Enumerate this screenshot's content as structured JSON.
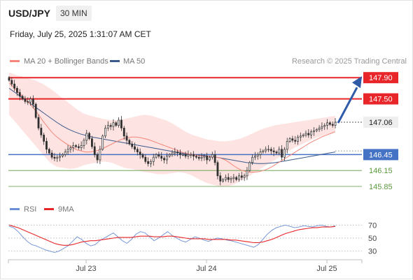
{
  "header": {
    "pair": "USD/JPY",
    "timeframe": "30 MIN",
    "datetime": "Friday, July 25, 2025 1:31:07 AM CET"
  },
  "legend": {
    "ma20": "MA 20 + Bollinger Bands",
    "ma50": "MA 50",
    "source": "Research © 2025 Trading Central",
    "rsi": "RSI",
    "ma9": "9MA"
  },
  "colors": {
    "resistance": "#e8262a",
    "pivot": "#4472c4",
    "support": "#5a9a3c",
    "ma20": "#f4867c",
    "ma50": "#3b5a8c",
    "bollinger_fill": "#fde3e1",
    "candle_up": "#2f2f2f",
    "candle_down": "#5a5a5a",
    "projection": "#2e5aa8",
    "rsi": "#6b8fd6",
    "rsi_ma": "#e8262a"
  },
  "chart_data": [
    {
      "type": "candlestick",
      "title": "USD/JPY 30 MIN",
      "ylim": [
        145.6,
        148.1
      ],
      "x_ticks": [
        "Jul 23",
        "Jul 24",
        "Jul 25"
      ],
      "levels": [
        {
          "value": 147.9,
          "label": "147.90",
          "kind": "resistance"
        },
        {
          "value": 147.5,
          "label": "147.50",
          "kind": "resistance"
        },
        {
          "value": 147.06,
          "label": "147.06",
          "kind": "last"
        },
        {
          "value": 146.45,
          "label": "146.45",
          "kind": "pivot"
        },
        {
          "value": 146.15,
          "label": "146.15",
          "kind": "support"
        },
        {
          "value": 145.85,
          "label": "145.85",
          "kind": "support"
        }
      ],
      "close": [
        147.85,
        147.78,
        147.7,
        147.62,
        147.55,
        147.5,
        147.45,
        147.44,
        147.5,
        147.4,
        147.15,
        146.95,
        146.82,
        146.7,
        146.55,
        146.48,
        146.4,
        146.38,
        146.4,
        146.42,
        146.45,
        146.5,
        146.55,
        146.58,
        146.62,
        146.6,
        146.58,
        146.62,
        146.72,
        146.85,
        146.75,
        146.6,
        146.45,
        146.35,
        146.55,
        146.8,
        146.95,
        147.0,
        146.98,
        147.05,
        147.0,
        147.1,
        146.95,
        146.8,
        146.72,
        146.65,
        146.6,
        146.55,
        146.5,
        146.45,
        146.4,
        146.32,
        146.28,
        146.32,
        146.4,
        146.45,
        146.42,
        146.38,
        146.35,
        146.42,
        146.45,
        146.48,
        146.5,
        146.48,
        146.45,
        146.45,
        146.42,
        146.45,
        146.45,
        146.42,
        146.4,
        146.38,
        146.4,
        146.42,
        146.35,
        146.4,
        146.45,
        146.3,
        146.05,
        145.95,
        145.98,
        146.02,
        145.98,
        146.0,
        146.02,
        145.98,
        146.05,
        146.02,
        146.05,
        146.15,
        146.3,
        146.4,
        146.42,
        146.45,
        146.5,
        146.52,
        146.55,
        146.55,
        146.52,
        146.5,
        146.48,
        146.55,
        146.4,
        146.55,
        146.7,
        146.75,
        146.72,
        146.7,
        146.78,
        146.8,
        146.82,
        146.85,
        146.82,
        146.88,
        146.9,
        146.92,
        146.95,
        146.98,
        147.0,
        147.05,
        147.02,
        147.0,
        147.06
      ],
      "ma20": [
        147.8,
        147.72,
        147.64,
        147.56,
        147.48,
        147.4,
        147.3,
        147.2,
        147.08,
        146.98,
        146.88,
        146.8,
        146.74,
        146.68,
        146.63,
        146.58,
        146.54,
        146.52,
        146.5,
        146.5,
        146.51,
        146.53,
        146.56,
        146.6,
        146.64,
        146.68,
        146.72,
        146.75,
        146.77,
        146.78,
        146.78,
        146.77,
        146.75,
        146.73,
        146.7,
        146.67,
        146.64,
        146.61,
        146.58,
        146.55,
        146.52,
        146.49,
        146.47,
        146.45,
        146.44,
        146.43,
        146.42,
        146.42,
        146.41,
        146.4,
        146.38,
        146.35,
        146.3,
        146.24,
        146.19,
        146.15,
        146.13,
        146.12,
        146.12,
        146.13,
        146.15,
        146.18,
        146.22,
        146.27,
        146.32,
        146.37,
        146.42,
        146.47,
        146.52,
        146.57,
        146.62,
        146.67,
        146.71,
        146.75,
        146.79,
        146.82,
        146.85,
        146.88
      ],
      "ma50": [
        147.7,
        147.62,
        147.54,
        147.46,
        147.38,
        147.3,
        147.22,
        147.14,
        147.06,
        146.99,
        146.93,
        146.88,
        146.84,
        146.81,
        146.78,
        146.76,
        146.74,
        146.72,
        146.7,
        146.68,
        146.66,
        146.64,
        146.62,
        146.6,
        146.58,
        146.56,
        146.54,
        146.52,
        146.5,
        146.48,
        146.46,
        146.45,
        146.44,
        146.43,
        146.42,
        146.4,
        146.38,
        146.36,
        146.34,
        146.32,
        146.3,
        146.29,
        146.28,
        146.28,
        146.29,
        146.3,
        146.32,
        146.34,
        146.36,
        146.38,
        146.4,
        146.42,
        146.44,
        146.46,
        146.48,
        146.5
      ],
      "bollinger_upper": [
        148.0,
        147.95,
        147.92,
        147.88,
        147.84,
        147.78,
        147.7,
        147.6,
        147.5,
        147.4,
        147.3,
        147.22,
        147.18,
        147.15,
        147.12,
        147.1,
        147.1,
        147.12,
        147.15,
        147.18,
        147.2,
        147.18,
        147.14,
        147.1,
        147.04,
        146.96,
        146.88,
        146.82,
        146.78,
        146.74,
        146.72,
        146.7,
        146.7,
        146.72,
        146.75,
        146.8,
        146.86,
        146.92,
        146.96,
        147.0,
        147.02,
        147.04,
        147.06,
        147.08,
        147.1,
        147.12,
        147.14,
        147.16,
        147.18
      ],
      "bollinger_lower": [
        147.2,
        147.05,
        146.9,
        146.75,
        146.6,
        146.45,
        146.3,
        146.22,
        146.2,
        146.18,
        146.2,
        146.25,
        146.28,
        146.3,
        146.32,
        146.3,
        146.25,
        146.2,
        146.18,
        146.15,
        146.12,
        146.1,
        146.08,
        146.08,
        146.1,
        146.12,
        146.1,
        146.05,
        145.98,
        145.92,
        145.88,
        145.85,
        145.85,
        145.88,
        145.95,
        146.02,
        146.1,
        146.18,
        146.26,
        146.34,
        146.42,
        146.5,
        146.58,
        146.64,
        146.7,
        146.76,
        146.8,
        146.84,
        146.88
      ]
    },
    {
      "type": "line",
      "title": "RSI",
      "ylim": [
        20,
        80
      ],
      "y_ticks": [
        "70",
        "50",
        "30"
      ],
      "series": [
        {
          "name": "RSI",
          "values": [
            68,
            66,
            60,
            52,
            45,
            40,
            38,
            35,
            32,
            30,
            28,
            30,
            34,
            38,
            45,
            52,
            48,
            42,
            38,
            40,
            46,
            50,
            54,
            58,
            52,
            46,
            42,
            48,
            56,
            60,
            58,
            52,
            46,
            50,
            55,
            60,
            54,
            50,
            46,
            44,
            48,
            52,
            50,
            47,
            45,
            48,
            50,
            49,
            47,
            46,
            44,
            42,
            40,
            38,
            36,
            40,
            48,
            56,
            62,
            66,
            68,
            70,
            68,
            66,
            67,
            69,
            68,
            67,
            69,
            70,
            68,
            67,
            69
          ]
        },
        {
          "name": "9MA",
          "values": [
            70,
            68,
            66,
            63,
            60,
            57,
            54,
            51,
            48,
            45,
            42,
            40,
            39,
            39,
            40,
            42,
            44,
            45,
            46,
            46,
            47,
            48,
            49,
            50,
            51,
            51,
            51,
            51,
            52,
            53,
            53,
            53,
            52,
            52,
            52,
            53,
            53,
            52,
            51,
            50,
            49,
            49,
            49,
            49,
            48,
            48,
            48,
            48,
            48,
            47,
            47,
            46,
            45,
            44,
            43,
            43,
            44,
            46,
            48,
            51,
            54,
            57,
            59,
            61,
            63,
            64,
            65,
            66,
            66,
            67,
            67,
            67,
            68
          ]
        }
      ]
    }
  ]
}
